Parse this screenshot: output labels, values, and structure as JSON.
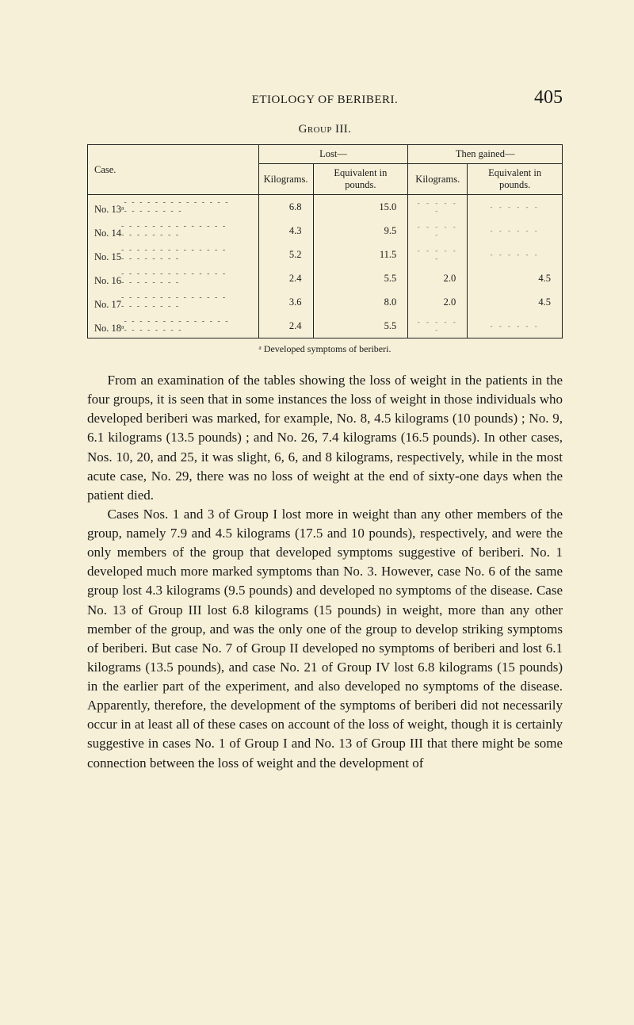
{
  "header": {
    "running_head": "ETIOLOGY OF BERIBERI.",
    "page_number": "405"
  },
  "table": {
    "title": "Group III.",
    "col_headers": {
      "case": "Case.",
      "lost": "Lost—",
      "gained": "Then gained—",
      "kg": "Kilograms.",
      "lb": "Equivalent in pounds."
    },
    "rows": [
      {
        "case": "No. 13ᵃ",
        "lost_kg": "6.8",
        "lost_lb": "15.0",
        "gain_kg": "",
        "gain_lb": ""
      },
      {
        "case": "No. 14",
        "lost_kg": "4.3",
        "lost_lb": "9.5",
        "gain_kg": "",
        "gain_lb": ""
      },
      {
        "case": "No. 15",
        "lost_kg": "5.2",
        "lost_lb": "11.5",
        "gain_kg": "",
        "gain_lb": ""
      },
      {
        "case": "No. 16",
        "lost_kg": "2.4",
        "lost_lb": "5.5",
        "gain_kg": "2.0",
        "gain_lb": "4.5"
      },
      {
        "case": "No. 17",
        "lost_kg": "3.6",
        "lost_lb": "8.0",
        "gain_kg": "2.0",
        "gain_lb": "4.5"
      },
      {
        "case": "No. 18ᵃ",
        "lost_kg": "2.4",
        "lost_lb": "5.5",
        "gain_kg": "",
        "gain_lb": ""
      }
    ],
    "footnote": "ᵃ Developed symptoms of beriberi."
  },
  "body": {
    "p1": "From an examination of the tables showing the loss of weight in the patients in the four groups, it is seen that in some instances the loss of weight in those individuals who developed beriberi was marked, for example, No. 8, 4.5 kilograms (10 pounds) ; No. 9, 6.1 kilograms (13.5 pounds) ; and No. 26, 7.4 kilograms (16.5 pounds). In other cases, Nos. 10, 20, and 25, it was slight, 6, 6, and 8 kilograms, respectively, while in the most acute case, No. 29, there was no loss of weight at the end of sixty-one days when the patient died.",
    "p2": "Cases Nos. 1 and 3 of Group I lost more in weight than any other members of the group, namely 7.9 and 4.5 kilograms (17.5 and 10 pounds), respectively, and were the only members of the group that developed symptoms suggestive of beriberi. No. 1 developed much more marked symptoms than No. 3. However, case No. 6 of the same group lost 4.3 kilograms (9.5 pounds) and developed no symptoms of the disease. Case No. 13 of Group III lost 6.8 kilograms (15 pounds) in weight, more than any other member of the group, and was the only one of the group to develop striking symptoms of beriberi. But case No. 7 of Group II developed no symptoms of beriberi and lost 6.1 kilograms (13.5 pounds), and case No. 21 of Group IV lost 6.8 kilograms (15 pounds) in the earlier part of the experiment, and also developed no symptoms of the disease. Apparently, therefore, the development of the symptoms of beriberi did not necessarily occur in at least all of these cases on account of the loss of weight, though it is certainly suggestive in cases No. 1 of Group I and No. 13 of Group III that there might be some connection between the loss of weight and the development of"
  },
  "style": {
    "background_color": "#f6f0d8",
    "text_color": "#1a1a1a",
    "border_color": "#222222",
    "body_font_size_pt": 17,
    "header_font_size_pt": 15,
    "page_number_font_size_pt": 24,
    "table_font_size_pt": 12.5,
    "footnote_font_size_pt": 12
  }
}
